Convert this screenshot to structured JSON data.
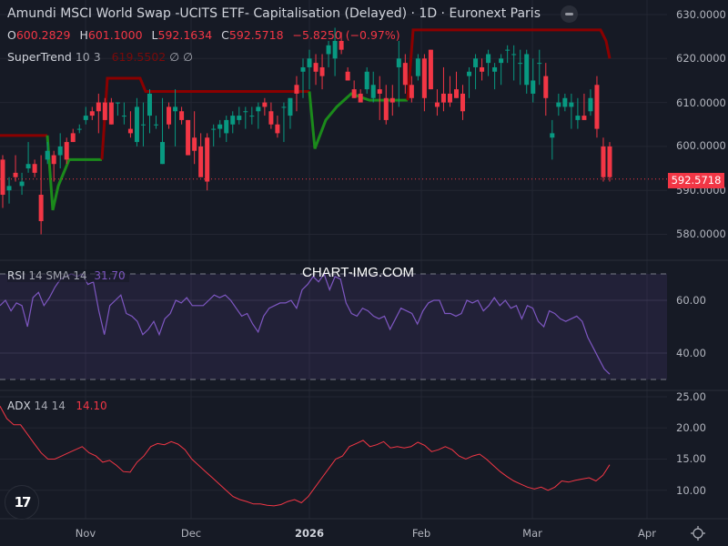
{
  "header": {
    "title": "Amundi MSCI World Swap -UCITS ETF- Capitalisation (Delayed) · 1D · Euronext Paris",
    "ohlc": {
      "open_label": "O",
      "open": "600.2829",
      "high_label": "H",
      "high": "601.1000",
      "low_label": "L",
      "low": "592.1634",
      "close_label": "C",
      "close": "592.5718",
      "change": "−5.8250 (−0.97%)"
    },
    "supertrend": {
      "name": "SuperTrend",
      "params": "10 3",
      "value": "619.5502",
      "extra1": "∅",
      "extra2": "∅"
    }
  },
  "rsi_legend": {
    "name": "RSI",
    "params": "14 SMA 14",
    "value": "31.70"
  },
  "adx_legend": {
    "name": "ADX",
    "params": "14 14",
    "value": "14.10"
  },
  "watermark": "CHART-IMG.COM",
  "logo": "17",
  "price_axis": [
    "630.0000",
    "620.0000",
    "610.0000",
    "600.0000",
    "590.0000",
    "580.0000"
  ],
  "rsi_axis": [
    "60.00",
    "40.00"
  ],
  "adx_axis": [
    "25.00",
    "20.00",
    "15.00",
    "10.00"
  ],
  "time_axis": [
    "Nov",
    "Dec",
    "2026",
    "Feb",
    "Mar",
    "Apr"
  ],
  "last_price_tag": "592.5718",
  "colors": {
    "up": "#089981",
    "down": "#f23645",
    "supertrend_up": "#1b8a1b",
    "supertrend_down": "#8b0000",
    "rsi": "#7e57c2",
    "adx": "#f23645",
    "bg": "#161a25"
  },
  "chart_data": [
    {
      "type": "candlestick",
      "title": "Amundi MSCI World Swap -UCITS ETF- Capitalisation (Delayed) · 1D · Euronext Paris",
      "ylim": [
        577,
        632
      ],
      "yticks": [
        580,
        590,
        600,
        610,
        620,
        630
      ],
      "xticks": [
        "Nov",
        "Dec",
        "2026",
        "Feb",
        "Mar",
        "Apr"
      ],
      "last_close": 592.5718,
      "series_note": "approximate daily OHLC read from pixels (Oct–Mar)",
      "ohlc": [
        [
          597,
          598,
          586,
          589
        ],
        [
          590,
          593,
          587,
          591
        ],
        [
          594,
          598,
          592,
          593
        ],
        [
          591,
          594,
          589,
          592
        ],
        [
          595,
          601,
          594,
          596
        ],
        [
          596,
          597,
          593,
          594
        ],
        [
          589,
          598,
          580,
          583
        ],
        [
          597,
          601,
          596,
          599
        ],
        [
          598,
          599,
          592,
          596
        ],
        [
          598,
          603,
          595,
          600
        ],
        [
          601,
          602,
          596,
          597
        ],
        [
          603,
          604,
          601,
          601
        ],
        [
          604,
          605,
          603,
          604
        ],
        [
          606,
          609,
          605,
          607
        ],
        [
          608,
          609,
          606,
          607
        ],
        [
          610,
          612,
          603,
          608
        ],
        [
          610,
          611,
          606,
          606
        ],
        [
          610,
          611,
          605,
          605
        ],
        [
          610,
          610,
          607,
          610
        ],
        [
          607,
          610,
          605,
          607
        ],
        [
          604,
          608,
          602,
          603
        ],
        [
          601,
          611,
          600,
          609
        ],
        [
          605,
          610,
          600,
          605
        ],
        [
          607,
          613,
          603,
          612
        ],
        [
          605,
          607,
          604,
          605
        ],
        [
          596,
          611,
          596,
          601
        ],
        [
          609,
          610,
          604,
          605
        ],
        [
          608,
          613,
          600,
          609
        ],
        [
          608,
          609,
          605,
          606
        ],
        [
          606,
          606,
          598,
          598
        ],
        [
          602,
          608,
          596,
          599
        ],
        [
          600,
          603,
          593,
          593
        ],
        [
          602,
          603,
          590,
          592
        ],
        [
          604,
          605,
          600,
          604
        ],
        [
          604,
          606,
          602,
          605
        ],
        [
          603,
          607,
          601,
          606
        ],
        [
          605,
          608,
          603,
          607
        ],
        [
          606,
          609,
          605,
          607
        ],
        [
          608,
          609,
          604,
          608
        ],
        [
          607,
          609,
          605,
          607
        ],
        [
          608,
          610,
          604,
          609
        ],
        [
          610,
          611,
          607,
          609
        ],
        [
          608,
          610,
          604,
          605
        ],
        [
          605,
          607,
          602,
          603
        ],
        [
          609,
          610,
          601,
          609
        ],
        [
          607,
          611,
          604,
          611
        ],
        [
          614,
          616,
          608,
          612
        ],
        [
          617,
          620,
          611,
          618
        ],
        [
          618,
          622,
          613,
          620
        ],
        [
          619,
          621,
          614,
          617
        ],
        [
          618,
          621,
          613,
          616
        ],
        [
          621,
          624,
          618,
          623
        ],
        [
          620,
          627,
          616,
          624
        ],
        [
          624,
          626,
          621,
          622
        ],
        [
          617,
          618,
          615,
          615
        ],
        [
          613,
          615,
          611,
          611
        ],
        [
          612,
          613,
          611,
          610
        ],
        [
          613,
          618,
          612,
          617
        ],
        [
          611,
          617,
          610,
          614
        ],
        [
          613,
          616,
          606,
          612
        ],
        [
          611,
          614,
          605,
          606
        ],
        [
          611,
          614,
          607,
          610
        ],
        [
          618,
          624,
          609,
          620
        ],
        [
          619,
          621,
          612,
          614
        ],
        [
          614,
          616,
          610,
          611
        ],
        [
          616,
          621,
          615,
          620
        ],
        [
          620,
          621,
          608,
          611
        ],
        [
          622,
          622,
          613,
          613
        ],
        [
          610,
          613,
          607,
          609
        ],
        [
          612,
          618,
          608,
          610
        ],
        [
          612,
          616,
          609,
          610
        ],
        [
          613,
          617,
          611,
          611
        ],
        [
          612,
          614,
          606,
          608
        ],
        [
          616,
          618,
          611,
          617
        ],
        [
          618,
          621,
          613,
          620
        ],
        [
          618,
          620,
          615,
          617
        ],
        [
          619,
          622,
          616,
          621
        ],
        [
          617,
          619,
          613,
          618
        ],
        [
          619,
          621,
          614,
          620
        ],
        [
          622,
          623,
          619,
          622
        ],
        [
          621,
          623,
          615,
          621
        ],
        [
          619,
          622,
          614,
          619
        ],
        [
          614,
          622,
          612,
          621
        ],
        [
          612,
          620,
          610,
          615
        ],
        [
          619,
          622,
          614,
          619
        ],
        [
          616,
          619,
          607,
          611
        ],
        [
          602,
          606,
          597,
          603
        ],
        [
          609,
          612,
          607,
          610
        ],
        [
          609,
          612,
          608,
          611
        ],
        [
          609,
          612,
          604,
          610
        ],
        [
          606,
          611,
          604,
          607
        ],
        [
          607,
          612,
          607,
          606
        ],
        [
          608,
          613,
          607,
          611
        ],
        [
          614,
          616,
          602,
          604
        ],
        [
          600,
          602,
          592,
          593
        ],
        [
          600,
          601,
          592,
          593
        ]
      ],
      "supertrend": {
        "params": "10 3",
        "last_value": 619.5502,
        "color_up": "#1b8a1b",
        "color_down": "#8b0000"
      }
    },
    {
      "type": "line",
      "title": "RSI 14 SMA 14",
      "ylim": [
        25,
        75
      ],
      "yticks": [
        40,
        60
      ],
      "bands": [
        30,
        70
      ],
      "last_value": 31.7,
      "values": [
        58,
        60,
        56,
        59,
        58,
        50,
        61,
        63,
        58,
        61,
        65,
        68,
        69,
        70,
        69,
        70,
        66,
        67,
        56,
        47,
        58,
        60,
        62,
        55,
        54,
        52,
        47,
        49,
        52,
        47,
        53,
        55,
        60,
        59,
        61,
        58,
        58,
        58,
        60,
        62,
        61,
        62,
        60,
        57,
        54,
        55,
        51,
        48,
        54,
        57,
        58,
        59,
        59,
        60,
        57,
        64,
        66,
        69,
        67,
        70,
        64,
        69,
        68,
        59,
        55,
        54,
        57,
        56,
        54,
        53,
        54,
        49,
        53,
        57,
        56,
        55,
        51,
        56,
        59,
        60,
        60,
        55,
        55,
        54,
        55,
        60,
        59,
        60,
        56,
        58,
        61,
        58,
        60,
        57,
        58,
        53,
        58,
        57,
        52,
        50,
        56,
        55,
        53,
        52,
        53,
        54,
        52,
        46,
        42,
        38,
        34,
        32
      ]
    },
    {
      "type": "line",
      "title": "ADX 14 14",
      "ylim": [
        6,
        26
      ],
      "yticks": [
        10,
        15,
        20,
        25
      ],
      "last_value": 14.1,
      "values": [
        23.5,
        21.5,
        20.5,
        20.5,
        19,
        17.5,
        16,
        15,
        15,
        15.5,
        16,
        16.5,
        17,
        16,
        15.5,
        14.5,
        14.8,
        14,
        13,
        12.9,
        14.5,
        15.5,
        17,
        17.5,
        17.3,
        17.8,
        17.4,
        16.5,
        15,
        14,
        13,
        12,
        11,
        10,
        9,
        8.5,
        8.2,
        7.8,
        7.8,
        7.6,
        7.5,
        7.7,
        8.2,
        8.5,
        8,
        9,
        10.5,
        12,
        13.5,
        15,
        15.5,
        17,
        17.5,
        18,
        17,
        17.3,
        17.8,
        16.8,
        17,
        16.8,
        17,
        17.7,
        17.2,
        16.2,
        16.5,
        17,
        16.5,
        15.5,
        15,
        15.5,
        15.8,
        15,
        14,
        13,
        12.2,
        11.5,
        11,
        10.5,
        10.2,
        10.5,
        10,
        10.5,
        11.5,
        11.3,
        11.6,
        11.8,
        12,
        11.5,
        12.4,
        14.1
      ]
    }
  ]
}
